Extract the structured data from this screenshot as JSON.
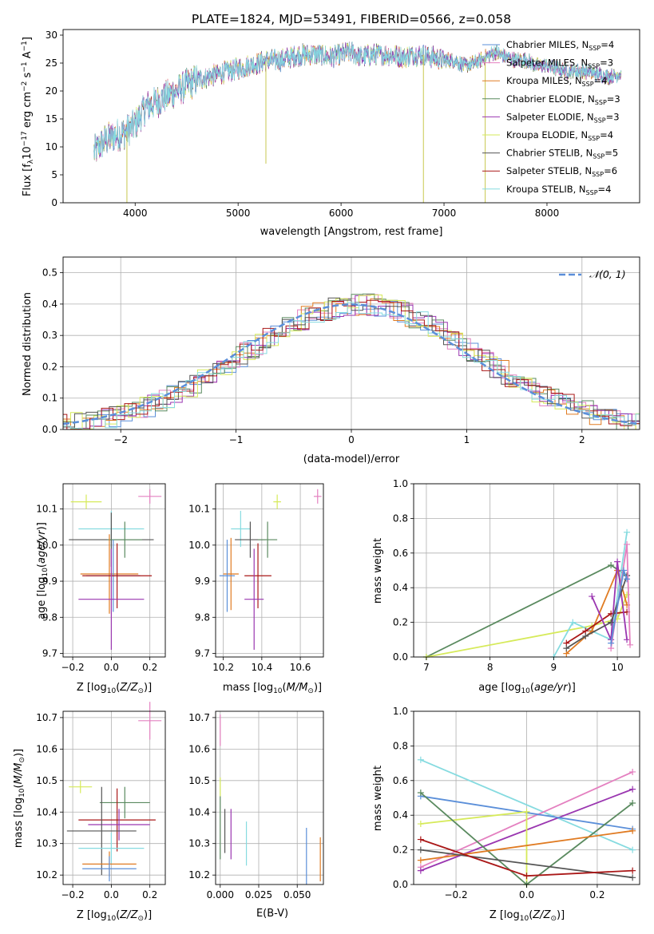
{
  "colors": {
    "Chabrier MILES": "#5b8fd9",
    "Salpeter MILES": "#e480c0",
    "Kroupa MILES": "#e07b22",
    "Chabrier ELODIE": "#5a8a5f",
    "Salpeter ELODIE": "#9a36b0",
    "Kroupa ELODIE": "#d6ea5a",
    "Chabrier STELIB": "#555555",
    "Salpeter STELIB": "#aa1818",
    "Kroupa STELIB": "#86dbe0"
  },
  "chart_data": [
    {
      "id": "spectrum",
      "type": "line",
      "title": "PLATE=1824, MJD=53491, FIBERID=0566, z=0.058",
      "xlabel": "wavelength [Angstrom, rest frame]",
      "ylabel": "Flux [f",
      "xlim": [
        3300,
        8900
      ],
      "ylim": [
        0,
        31
      ],
      "xticks": [
        "4000",
        "5000",
        "6000",
        "7000",
        "8000"
      ],
      "xtick_values": [
        4000,
        5000,
        6000,
        7000,
        8000
      ],
      "yticks": [
        "0",
        "5",
        "10",
        "15",
        "20",
        "25",
        "30"
      ],
      "ytick_values": [
        0,
        5,
        10,
        15,
        20,
        25,
        30
      ],
      "grid": false,
      "legend_position": "top-right",
      "legend": [
        {
          "label": "Chabrier MILES, N",
          "n": "=4"
        },
        {
          "label": "Salpeter MILES, N",
          "n": "=3"
        },
        {
          "label": "Kroupa MILES, N",
          "n": "=4"
        },
        {
          "label": "Chabrier ELODIE, N",
          "n": "=3"
        },
        {
          "label": "Salpeter ELODIE, N",
          "n": "=3"
        },
        {
          "label": "Kroupa ELODIE, N",
          "n": "=4"
        },
        {
          "label": "Chabrier STELIB, N",
          "n": "=5"
        },
        {
          "label": "Salpeter STELIB, N",
          "n": "=6"
        },
        {
          "label": "Kroupa STELIB, N",
          "n": "=4"
        }
      ],
      "legend_sub": "SSP",
      "continuum": {
        "x": [
          3600,
          3700,
          3800,
          3900,
          4000,
          4100,
          4200,
          4300,
          4400,
          4500,
          4600,
          4700,
          4800,
          4900,
          5000,
          5100,
          5200,
          5300,
          5400,
          5500,
          5600,
          5700,
          5800,
          5900,
          6000,
          6100,
          6200,
          6300,
          6400,
          6500,
          6600,
          6700,
          6800,
          6900,
          7000,
          7100,
          7200,
          7300,
          7400,
          7500,
          7600,
          7700,
          7800,
          7900,
          8000,
          8100,
          8200,
          8300,
          8400,
          8500,
          8600,
          8700
        ],
        "y": [
          9,
          11,
          12,
          12.5,
          14,
          17,
          18,
          19,
          20,
          21,
          22,
          22.5,
          23,
          23.5,
          24,
          24.5,
          25,
          25.5,
          25.5,
          26,
          26.5,
          26.5,
          26.5,
          26,
          26.5,
          27,
          26,
          26.5,
          26.5,
          26.5,
          26,
          26.5,
          26.5,
          26,
          25.5,
          25.5,
          24.5,
          25,
          26,
          27,
          26,
          25.5,
          25.5,
          24.5,
          24.5,
          24,
          23.5,
          23.5,
          23.5,
          23,
          22.5,
          23
        ]
      },
      "spikes": [
        {
          "x": 3920,
          "y": 0
        },
        {
          "x": 5270,
          "y": 7
        },
        {
          "x": 6800,
          "y": 0
        },
        {
          "x": 7400,
          "y": 0
        }
      ]
    },
    {
      "id": "residuals",
      "type": "histogram",
      "xlabel": "(data-model)/error",
      "ylabel": "Normed distribution",
      "xlim": [
        -2.5,
        2.5
      ],
      "ylim": [
        0,
        0.55
      ],
      "xticks": [
        "−2",
        "−1",
        "0",
        "1",
        "2"
      ],
      "xtick_values": [
        -2,
        -1,
        0,
        1,
        2
      ],
      "yticks": [
        "0.0",
        "0.1",
        "0.2",
        "0.3",
        "0.4",
        "0.5"
      ],
      "ytick_values": [
        0,
        0.1,
        0.2,
        0.3,
        0.4,
        0.5
      ],
      "grid": true,
      "legend_position": "top-right",
      "legend_label": "𝒩(0, 1)",
      "bin_width": 0.1,
      "gaussian": {
        "mean": 0,
        "sigma": 1,
        "color": "#5b8fd9"
      }
    },
    {
      "id": "age-vs-z",
      "type": "errorbar",
      "xlabel": "Z [log",
      "ylabel": "age  [log",
      "xlim": [
        -0.25,
        0.28
      ],
      "ylim": [
        9.69,
        10.17
      ],
      "xticks": [
        "−0.2",
        "0.0",
        "0.2"
      ],
      "xtick_values": [
        -0.2,
        0,
        0.2
      ],
      "yticks": [
        "9.7",
        "9.8",
        "9.9",
        "10.0",
        "10.1"
      ],
      "ytick_values": [
        9.7,
        9.8,
        9.9,
        10.0,
        10.1
      ],
      "grid": true,
      "points": [
        {
          "model": "Kroupa ELODIE",
          "x": -0.13,
          "y": 10.12,
          "xerr": 0.08,
          "yerr": 0.02
        },
        {
          "model": "Salpeter MILES",
          "x": 0.2,
          "y": 10.135,
          "xerr": 0.06,
          "yerr": 0.02
        },
        {
          "model": "Kroupa STELIB",
          "x": 0.0,
          "y": 10.045,
          "xerr": 0.17,
          "yerr": 0.05
        },
        {
          "model": "Chabrier STELIB",
          "x": 0.0,
          "y": 10.015,
          "xerr": 0.22,
          "yerr": 0.075
        },
        {
          "model": "Chabrier ELODIE",
          "x": 0.07,
          "y": 10.015,
          "xerr": 0.09,
          "yerr": 0.05
        },
        {
          "model": "Kroupa MILES",
          "x": -0.01,
          "y": 9.92,
          "xerr": 0.15,
          "yerr": 0.11
        },
        {
          "model": "Chabrier MILES",
          "x": 0.01,
          "y": 9.915,
          "xerr": 0.14,
          "yerr": 0.1
        },
        {
          "model": "Salpeter STELIB",
          "x": 0.03,
          "y": 9.915,
          "xerr": 0.18,
          "yerr": 0.09
        },
        {
          "model": "Salpeter ELODIE",
          "x": 0.0,
          "y": 9.85,
          "xerr": 0.17,
          "yerr": 0.14
        }
      ]
    },
    {
      "id": "age-vs-mass",
      "type": "errorbar",
      "xlabel": "mass [log",
      "ylabel": "",
      "xlim": [
        10.16,
        10.72
      ],
      "ylim": [
        9.69,
        10.17
      ],
      "xticks": [
        "10.2",
        "10.4",
        "10.6"
      ],
      "xtick_values": [
        10.2,
        10.4,
        10.6
      ],
      "yticks": [
        "9.7",
        "9.8",
        "9.9",
        "10.0",
        "10.1"
      ],
      "ytick_values": [
        9.7,
        9.8,
        9.9,
        10.0,
        10.1
      ],
      "grid": true,
      "points": [
        {
          "model": "Kroupa ELODIE",
          "x": 10.48,
          "y": 10.12,
          "xerr": 0.02,
          "yerr": 0.02
        },
        {
          "model": "Salpeter MILES",
          "x": 10.69,
          "y": 10.135,
          "xerr": 0.02,
          "yerr": 0.02
        },
        {
          "model": "Kroupa STELIB",
          "x": 10.29,
          "y": 10.045,
          "xerr": 0.05,
          "yerr": 0.05
        },
        {
          "model": "Chabrier STELIB",
          "x": 10.34,
          "y": 10.015,
          "xerr": 0.08,
          "yerr": 0.05
        },
        {
          "model": "Chabrier ELODIE",
          "x": 10.43,
          "y": 10.015,
          "xerr": 0.05,
          "yerr": 0.05
        },
        {
          "model": "Kroupa MILES",
          "x": 10.24,
          "y": 9.92,
          "xerr": 0.04,
          "yerr": 0.1
        },
        {
          "model": "Chabrier MILES",
          "x": 10.22,
          "y": 9.915,
          "xerr": 0.04,
          "yerr": 0.1
        },
        {
          "model": "Salpeter STELIB",
          "x": 10.38,
          "y": 9.915,
          "xerr": 0.07,
          "yerr": 0.09
        },
        {
          "model": "Salpeter ELODIE",
          "x": 10.36,
          "y": 9.85,
          "xerr": 0.05,
          "yerr": 0.14
        }
      ]
    },
    {
      "id": "weights-vs-age",
      "type": "line",
      "xlabel": "age  [log",
      "ylabel": "mass weight",
      "xlim": [
        6.8,
        10.35
      ],
      "ylim": [
        0,
        1
      ],
      "xticks": [
        "7",
        "8",
        "9",
        "10"
      ],
      "xtick_values": [
        7,
        8,
        9,
        10
      ],
      "yticks": [
        "0.0",
        "0.2",
        "0.4",
        "0.6",
        "0.8",
        "1.0"
      ],
      "ytick_values": [
        0,
        0.2,
        0.4,
        0.6,
        0.8,
        1.0
      ],
      "grid": true,
      "series": [
        {
          "model": "Chabrier ELODIE",
          "x": [
            7.0,
            9.9,
            10.15
          ],
          "y": [
            0.0,
            0.53,
            0.47
          ]
        },
        {
          "model": "Kroupa ELODIE",
          "x": [
            7.0,
            9.6,
            10.0,
            10.15
          ],
          "y": [
            0.0,
            0.18,
            0.22,
            0.36
          ]
        },
        {
          "model": "Kroupa STELIB",
          "x": [
            9.0,
            9.3,
            9.9,
            10.15
          ],
          "y": [
            0.0,
            0.2,
            0.1,
            0.72
          ]
        },
        {
          "model": "Kroupa MILES",
          "x": [
            9.2,
            9.6,
            10.0,
            10.15
          ],
          "y": [
            0.02,
            0.15,
            0.5,
            0.3
          ]
        },
        {
          "model": "Salpeter STELIB",
          "x": [
            9.2,
            9.5,
            9.9,
            10.15
          ],
          "y": [
            0.08,
            0.15,
            0.25,
            0.26
          ]
        },
        {
          "model": "Salpeter ELODIE",
          "x": [
            9.6,
            9.9,
            10.0,
            10.15
          ],
          "y": [
            0.35,
            0.1,
            0.55,
            0.1
          ]
        },
        {
          "model": "Chabrier STELIB",
          "x": [
            9.2,
            9.5,
            9.9,
            10.15
          ],
          "y": [
            0.05,
            0.12,
            0.2,
            0.47
          ]
        },
        {
          "model": "Salpeter MILES",
          "x": [
            9.9,
            10.15,
            10.2
          ],
          "y": [
            0.05,
            0.65,
            0.07
          ]
        },
        {
          "model": "Chabrier MILES",
          "x": [
            9.9,
            10.1,
            10.15
          ],
          "y": [
            0.08,
            0.5,
            0.45
          ]
        }
      ]
    },
    {
      "id": "mass-vs-z",
      "type": "errorbar",
      "xlabel": "Z [log",
      "ylabel": "mass [log",
      "xlim": [
        -0.25,
        0.28
      ],
      "ylim": [
        10.17,
        10.72
      ],
      "xticks": [
        "−0.2",
        "0.0",
        "0.2"
      ],
      "xtick_values": [
        -0.2,
        0,
        0.2
      ],
      "yticks": [
        "10.2",
        "10.3",
        "10.4",
        "10.5",
        "10.6",
        "10.7"
      ],
      "ytick_values": [
        10.2,
        10.3,
        10.4,
        10.5,
        10.6,
        10.7
      ],
      "grid": true,
      "points": [
        {
          "model": "Salpeter MILES",
          "x": 0.2,
          "y": 10.69,
          "xerr": 0.06,
          "yerr": 0.06
        },
        {
          "model": "Kroupa ELODIE",
          "x": -0.16,
          "y": 10.48,
          "xerr": 0.06,
          "yerr": 0.02
        },
        {
          "model": "Chabrier ELODIE",
          "x": 0.07,
          "y": 10.43,
          "xerr": 0.13,
          "yerr": 0.05
        },
        {
          "model": "Salpeter STELIB",
          "x": 0.03,
          "y": 10.375,
          "xerr": 0.2,
          "yerr": 0.1
        },
        {
          "model": "Salpeter ELODIE",
          "x": 0.04,
          "y": 10.36,
          "xerr": 0.16,
          "yerr": 0.05
        },
        {
          "model": "Chabrier STELIB",
          "x": -0.05,
          "y": 10.34,
          "xerr": 0.18,
          "yerr": 0.14
        },
        {
          "model": "Kroupa STELIB",
          "x": 0.0,
          "y": 10.285,
          "xerr": 0.17,
          "yerr": 0.05
        },
        {
          "model": "Kroupa MILES",
          "x": -0.01,
          "y": 10.235,
          "xerr": 0.14,
          "yerr": 0.04
        },
        {
          "model": "Chabrier MILES",
          "x": -0.01,
          "y": 10.22,
          "xerr": 0.14,
          "yerr": 0.04
        }
      ]
    },
    {
      "id": "mass-vs-ebv",
      "type": "errorbar",
      "xlabel": "E(B-V)",
      "ylabel": "",
      "xlim": [
        -0.003,
        0.067
      ],
      "ylim": [
        10.17,
        10.72
      ],
      "xticks": [
        "0.000",
        "0.025",
        "0.050"
      ],
      "xtick_values": [
        0,
        0.025,
        0.05
      ],
      "yticks": [
        "10.2",
        "10.3",
        "10.4",
        "10.5",
        "10.6",
        "10.7"
      ],
      "ytick_values": [
        10.2,
        10.3,
        10.4,
        10.5,
        10.6,
        10.7
      ],
      "grid": true,
      "points": [
        {
          "model": "Salpeter MILES",
          "x": 0.0,
          "y": 10.66,
          "xerr": 0,
          "yerr": 0.05
        },
        {
          "model": "Kroupa ELODIE",
          "x": 0.0,
          "y": 10.48,
          "xerr": 0,
          "yerr": 0.03
        },
        {
          "model": "Chabrier ELODIE",
          "x": 0.0,
          "y": 10.35,
          "xerr": 0,
          "yerr": 0.1
        },
        {
          "model": "Chabrier STELIB",
          "x": 0.003,
          "y": 10.34,
          "xerr": 0,
          "yerr": 0.07
        },
        {
          "model": "Salpeter ELODIE",
          "x": 0.007,
          "y": 10.33,
          "xerr": 0,
          "yerr": 0.08
        },
        {
          "model": "Kroupa STELIB",
          "x": 0.017,
          "y": 10.3,
          "xerr": 0,
          "yerr": 0.07
        },
        {
          "model": "Chabrier MILES",
          "x": 0.056,
          "y": 10.26,
          "xerr": 0,
          "yerr": 0.09
        },
        {
          "model": "Kroupa MILES",
          "x": 0.065,
          "y": 10.25,
          "xerr": 0,
          "yerr": 0.07
        }
      ]
    },
    {
      "id": "weights-vs-z",
      "type": "line",
      "xlabel": "Z [log",
      "ylabel": "mass weight",
      "xlim": [
        -0.32,
        0.32
      ],
      "ylim": [
        0,
        1
      ],
      "xticks": [
        "−0.2",
        "0.0",
        "0.2"
      ],
      "xtick_values": [
        -0.2,
        0,
        0.2
      ],
      "yticks": [
        "0.0",
        "0.2",
        "0.4",
        "0.6",
        "0.8",
        "1.0"
      ],
      "ytick_values": [
        0,
        0.2,
        0.4,
        0.6,
        0.8,
        1.0
      ],
      "grid": true,
      "series": [
        {
          "model": "Kroupa STELIB",
          "x": [
            -0.3,
            0.3
          ],
          "y": [
            0.72,
            0.2
          ]
        },
        {
          "model": "Salpeter MILES",
          "x": [
            -0.3,
            0.3
          ],
          "y": [
            0.1,
            0.65
          ]
        },
        {
          "model": "Salpeter ELODIE",
          "x": [
            -0.3,
            0.3
          ],
          "y": [
            0.08,
            0.55
          ]
        },
        {
          "model": "Chabrier MILES",
          "x": [
            -0.3,
            0.3
          ],
          "y": [
            0.51,
            0.32
          ]
        },
        {
          "model": "Kroupa ELODIE",
          "x": [
            -0.3,
            0.0,
            0.0
          ],
          "y": [
            0.35,
            0.42,
            0.0
          ]
        },
        {
          "model": "Chabrier ELODIE",
          "x": [
            -0.3,
            0.0,
            0.3
          ],
          "y": [
            0.53,
            0.0,
            0.47
          ]
        },
        {
          "model": "Kroupa MILES",
          "x": [
            -0.3,
            0.3
          ],
          "y": [
            0.14,
            0.31
          ]
        },
        {
          "model": "Chabrier STELIB",
          "x": [
            -0.3,
            0.3
          ],
          "y": [
            0.2,
            0.04
          ]
        },
        {
          "model": "Salpeter STELIB",
          "x": [
            -0.3,
            0.0,
            0.3
          ],
          "y": [
            0.26,
            0.05,
            0.08
          ]
        }
      ]
    }
  ]
}
